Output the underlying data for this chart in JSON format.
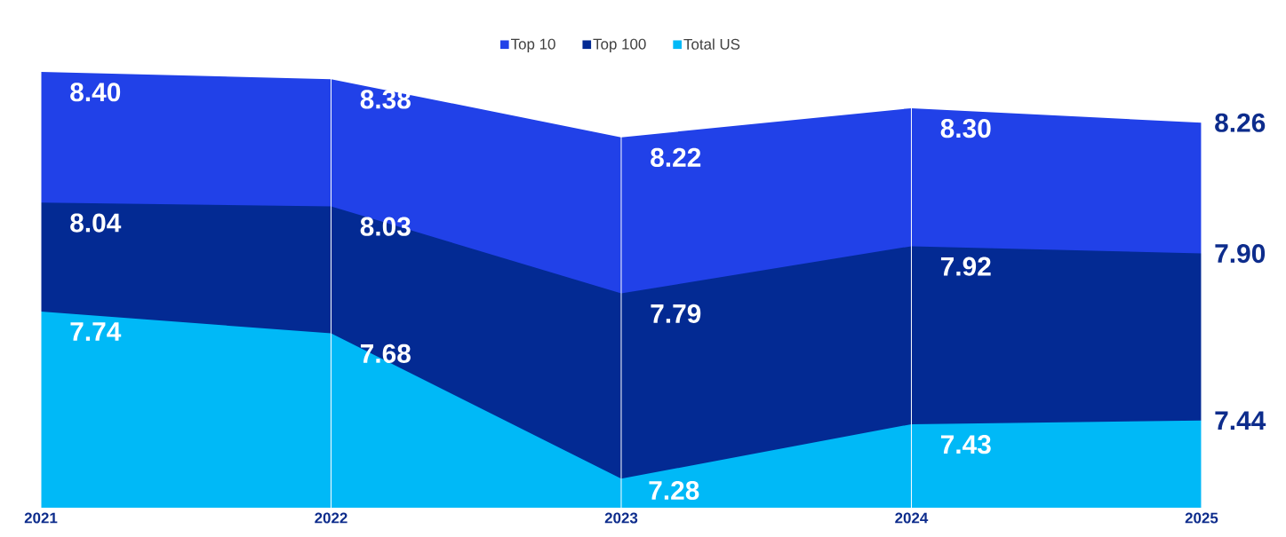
{
  "chart_data": {
    "type": "area",
    "x": [
      2021,
      2022,
      2023,
      2024,
      2025
    ],
    "xlim": [
      2021,
      2025
    ],
    "xticks": [
      2021,
      2022,
      2023,
      2024,
      2025
    ],
    "ylim": [
      7.2,
      8.4
    ],
    "grid": "x",
    "legend": "top",
    "series": [
      {
        "name": "Top 10",
        "color": "#2141e8",
        "values": [
          8.4,
          8.38,
          8.22,
          8.3,
          8.26
        ],
        "value_labels": [
          "8.40",
          "8.38",
          "8.22",
          "8.30",
          "8.26"
        ]
      },
      {
        "name": "Top 100",
        "color": "#032a93",
        "values": [
          8.04,
          8.03,
          7.79,
          7.92,
          7.9
        ],
        "value_labels": [
          "8.04",
          "8.03",
          "7.79",
          "7.92",
          "7.90"
        ]
      },
      {
        "name": "Total US",
        "color": "#00b9f7",
        "values": [
          7.74,
          7.68,
          7.28,
          7.43,
          7.44
        ],
        "value_labels": [
          "7.74",
          "7.68",
          "7.28",
          "7.43",
          "7.44"
        ]
      }
    ]
  }
}
